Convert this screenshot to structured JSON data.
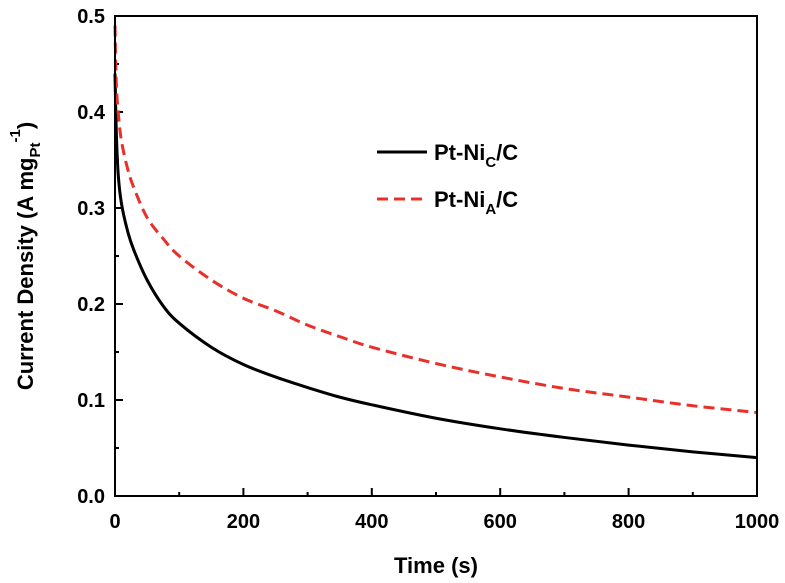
{
  "chart_data": {
    "type": "line",
    "title": "",
    "xlabel": "Time (s)",
    "ylabel": {
      "main": "Current Density (A mg",
      "sub": "Pt",
      "sup": "-1",
      "close": ")"
    },
    "xlim": [
      0,
      1000
    ],
    "ylim": [
      0.0,
      0.5
    ],
    "x_ticks": [
      0,
      200,
      400,
      600,
      800,
      1000
    ],
    "x_tick_labels": [
      "0",
      "200",
      "400",
      "600",
      "800",
      "1000"
    ],
    "y_ticks": [
      0.0,
      0.1,
      0.2,
      0.3,
      0.4,
      0.5
    ],
    "y_tick_labels": [
      "0.0",
      "0.1",
      "0.2",
      "0.3",
      "0.4",
      "0.5"
    ],
    "grid": false,
    "legend_position": "upper-right",
    "series": [
      {
        "name": "Pt-NiC/C",
        "label_main": "Pt-Ni",
        "label_sub": "C",
        "label_tail": "/C",
        "color": "#000000",
        "dash": "solid",
        "x": [
          0,
          2,
          5,
          10,
          20,
          30,
          50,
          75,
          100,
          150,
          200,
          250,
          300,
          350,
          400,
          500,
          600,
          700,
          800,
          900,
          1000
        ],
        "y": [
          0.44,
          0.38,
          0.335,
          0.305,
          0.275,
          0.255,
          0.225,
          0.198,
          0.18,
          0.155,
          0.137,
          0.124,
          0.113,
          0.103,
          0.095,
          0.081,
          0.07,
          0.061,
          0.053,
          0.046,
          0.04
        ]
      },
      {
        "name": "Pt-NiA/C",
        "label_main": "Pt-Ni",
        "label_sub": "A",
        "label_tail": "/C",
        "color": "#e8302a",
        "dash": "dashed",
        "x": [
          0,
          2,
          5,
          10,
          20,
          30,
          50,
          75,
          100,
          150,
          200,
          250,
          300,
          350,
          400,
          500,
          600,
          700,
          800,
          900,
          1000
        ],
        "y": [
          0.49,
          0.43,
          0.4,
          0.37,
          0.34,
          0.32,
          0.29,
          0.268,
          0.25,
          0.225,
          0.206,
          0.193,
          0.178,
          0.166,
          0.155,
          0.138,
          0.124,
          0.112,
          0.103,
          0.094,
          0.087
        ]
      }
    ]
  }
}
